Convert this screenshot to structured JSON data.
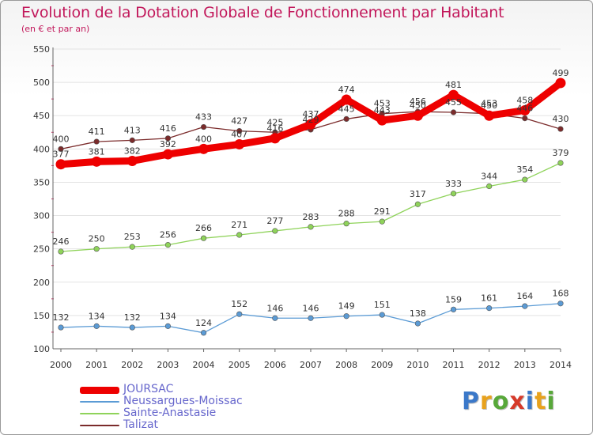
{
  "chart_data": {
    "type": "line",
    "title": "Evolution de la Dotation Globale de Fonctionnement par Habitant",
    "subtitle": "(en € et par an)",
    "x": [
      "2000",
      "2001",
      "2002",
      "2003",
      "2004",
      "2005",
      "2006",
      "2007",
      "2008",
      "2009",
      "2010",
      "2011",
      "2012",
      "2013",
      "2014"
    ],
    "ylim": [
      100,
      550
    ],
    "yticks": [
      "100",
      "150",
      "200",
      "250",
      "300",
      "350",
      "400",
      "450",
      "500",
      "550"
    ],
    "grid": true,
    "legend_position": "bottom-left",
    "series": [
      {
        "name": "JOURSAC",
        "color": "#ee0000",
        "values": [
          377,
          381,
          382,
          392,
          400,
          407,
          416,
          437,
          474,
          443,
          450,
          481,
          450,
          458,
          499
        ]
      },
      {
        "name": "Neussargues-Moissac",
        "color": "#5b9bd5",
        "values": [
          132,
          134,
          132,
          134,
          124,
          152,
          146,
          146,
          149,
          151,
          138,
          159,
          161,
          164,
          168
        ]
      },
      {
        "name": "Sainte-Anastasie",
        "color": "#8fd35a",
        "values": [
          246,
          250,
          253,
          256,
          266,
          271,
          277,
          283,
          288,
          291,
          317,
          333,
          344,
          354,
          379
        ]
      },
      {
        "name": "Talizat",
        "color": "#7b2b2b",
        "values": [
          400,
          411,
          413,
          416,
          433,
          427,
          425,
          429,
          445,
          453,
          456,
          455,
          453,
          446,
          430
        ]
      }
    ]
  },
  "logo": {
    "letters": [
      "P",
      "r",
      "o",
      "x",
      "i",
      "t",
      "i"
    ],
    "colors": [
      "#3a78c9",
      "#e8a21d",
      "#58a83a",
      "#d63a2a",
      "#3a78c9",
      "#e8a21d",
      "#58a83a"
    ]
  }
}
